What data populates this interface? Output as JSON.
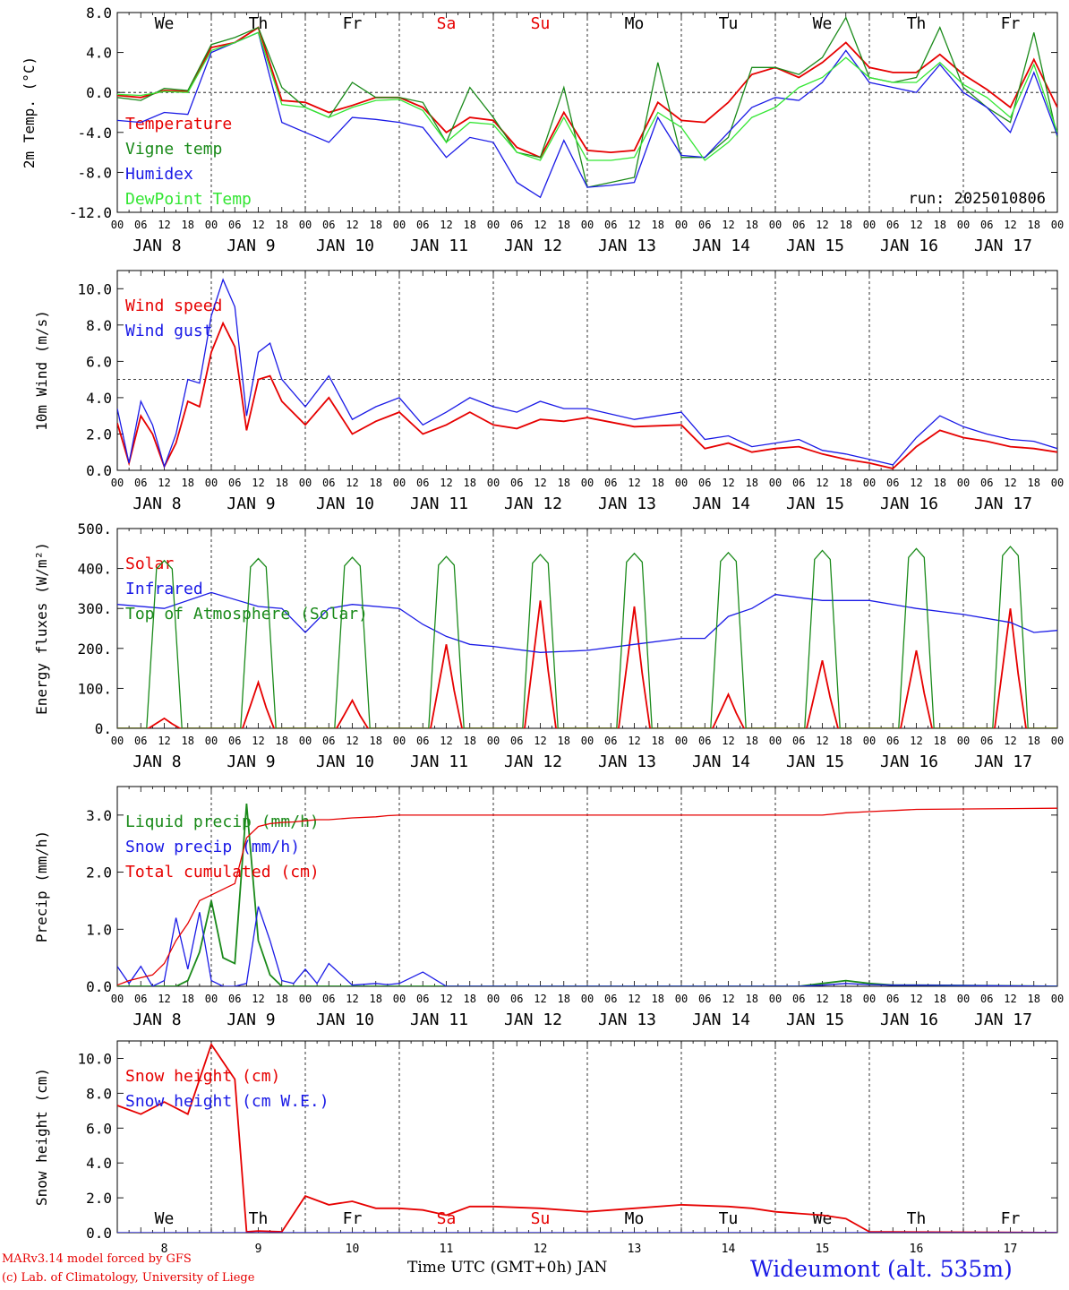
{
  "footer": {
    "credit_line1": "MARv3.14 model forced by GFS",
    "credit_line2": "(c) Lab. of Climatology, University of Liege",
    "x_title": "Time UTC (GMT+0h) JAN",
    "station": "Wideumont (alt. 535m)"
  },
  "colors": {
    "red": "#e60000",
    "green": "#1a8a1a",
    "blue": "#1a1ae6",
    "light_green": "#33e633",
    "weekend": "#e60000",
    "text": "#000000"
  },
  "days": {
    "weekday_labels": [
      "We",
      "Th",
      "Fr",
      "Sa",
      "Su",
      "Mo",
      "Tu",
      "We",
      "Th",
      "Fr"
    ],
    "weekend_flags": [
      false,
      false,
      false,
      true,
      true,
      false,
      false,
      false,
      false,
      false
    ],
    "date_labels": [
      "JAN 8",
      "JAN 9",
      "JAN 10",
      "JAN 11",
      "JAN 12",
      "JAN 13",
      "JAN 14",
      "JAN 15",
      "JAN 16",
      "JAN 17"
    ],
    "day_numbers": [
      "8",
      "9",
      "10",
      "11",
      "12",
      "13",
      "14",
      "15",
      "16",
      "17"
    ],
    "hour_labels": [
      "00",
      "06",
      "12",
      "18"
    ],
    "final_hour_label": "00"
  },
  "chart_data": [
    {
      "type": "line",
      "ylabel": "2m Temp. (°C)",
      "ylim": [
        -12,
        8
      ],
      "yticks": [
        "8.0",
        "4.0",
        "0.0",
        "-4.0",
        "-8.0",
        "-12.0"
      ],
      "ytick_values": [
        8,
        4,
        0,
        -4,
        -8,
        -12
      ],
      "reference_line": 0,
      "annotation": "run: 2025010806",
      "x_hours": [
        0,
        6,
        12,
        18,
        24,
        30,
        36,
        42,
        48,
        54,
        60,
        66,
        72,
        78,
        84,
        90,
        96,
        102,
        108,
        114,
        120,
        126,
        132,
        138,
        144,
        150,
        156,
        162,
        168,
        174,
        180,
        186,
        192,
        198,
        204,
        210,
        216,
        222,
        228,
        234,
        240
      ],
      "series": [
        {
          "name": "Temperature",
          "color": "#e60000",
          "values": [
            -0.3,
            -0.5,
            0.2,
            0.1,
            4.5,
            5.0,
            6.5,
            -0.8,
            -1.0,
            -2.0,
            -1.3,
            -0.5,
            -0.5,
            -1.5,
            -4.0,
            -2.5,
            -2.8,
            -5.5,
            -6.5,
            -2.0,
            -5.8,
            -6.0,
            -5.8,
            -1.0,
            -2.8,
            -3.0,
            -1.0,
            1.8,
            2.5,
            1.5,
            3.0,
            5.0,
            2.5,
            2.0,
            2.0,
            3.8,
            1.8,
            0.3,
            -1.5,
            3.3,
            -1.5
          ]
        },
        {
          "name": "Vigne temp",
          "color": "#1a8a1a",
          "values": [
            -0.5,
            -0.8,
            0.4,
            0.2,
            4.8,
            5.5,
            6.5,
            0.5,
            -1.5,
            -2.5,
            1.0,
            -0.5,
            -0.5,
            -1.0,
            -5.0,
            0.5,
            -2.5,
            -6.0,
            -6.5,
            0.5,
            -9.5,
            -9.0,
            -8.5,
            3.0,
            -6.5,
            -6.5,
            -4.5,
            2.5,
            2.5,
            1.8,
            3.5,
            7.5,
            1.5,
            1.0,
            1.5,
            6.5,
            0.5,
            -1.5,
            -3.0,
            6.0,
            -4.5
          ]
        },
        {
          "name": "Humidex",
          "color": "#1a1ae6",
          "values": [
            -2.8,
            -3.0,
            -2.0,
            -2.2,
            4.0,
            5.0,
            6.0,
            -3.0,
            -4.0,
            -5.0,
            -2.5,
            -2.7,
            -3.0,
            -3.5,
            -6.5,
            -4.5,
            -5.0,
            -9.0,
            -10.5,
            -4.8,
            -9.5,
            -9.3,
            -9.0,
            -2.5,
            -6.3,
            -6.5,
            -4.0,
            -1.5,
            -0.5,
            -0.8,
            1.0,
            4.2,
            1.0,
            0.5,
            0.0,
            2.8,
            0.0,
            -1.5,
            -4.0,
            2.0,
            -4.3
          ]
        },
        {
          "name": "DewPoint Temp",
          "color": "#33e633",
          "values": [
            -0.2,
            -0.3,
            0.1,
            0.0,
            4.2,
            5.0,
            6.0,
            -1.2,
            -1.5,
            -2.5,
            -1.5,
            -0.8,
            -0.7,
            -1.8,
            -5.0,
            -3.0,
            -3.2,
            -6.0,
            -6.8,
            -2.5,
            -6.8,
            -6.8,
            -6.5,
            -2.0,
            -3.5,
            -6.8,
            -5.0,
            -2.5,
            -1.5,
            0.5,
            1.5,
            3.5,
            1.5,
            1.0,
            1.0,
            3.0,
            0.8,
            -0.5,
            -2.5,
            2.8,
            -4.0
          ]
        }
      ]
    },
    {
      "type": "line",
      "ylabel": "10m Wind (m/s)",
      "ylim": [
        0,
        11
      ],
      "yticks": [
        "10.0",
        "8.0",
        "6.0",
        "4.0",
        "2.0",
        "0.0"
      ],
      "ytick_values": [
        10,
        8,
        6,
        4,
        2,
        0
      ],
      "reference_line": 5,
      "x_hours": [
        0,
        3,
        6,
        9,
        12,
        15,
        18,
        21,
        24,
        27,
        30,
        33,
        36,
        39,
        42,
        48,
        54,
        60,
        66,
        72,
        78,
        84,
        90,
        96,
        102,
        108,
        114,
        120,
        132,
        144,
        150,
        156,
        162,
        168,
        174,
        180,
        186,
        192,
        198,
        204,
        210,
        216,
        222,
        228,
        234,
        240
      ],
      "series": [
        {
          "name": "Wind speed",
          "color": "#e60000",
          "values": [
            2.6,
            0.4,
            3.0,
            2.0,
            0.2,
            1.5,
            3.8,
            3.5,
            6.5,
            8.1,
            6.8,
            2.2,
            5.0,
            5.2,
            3.8,
            2.5,
            4.0,
            2.0,
            2.7,
            3.2,
            2.0,
            2.5,
            3.2,
            2.5,
            2.3,
            2.8,
            2.7,
            2.9,
            2.4,
            2.5,
            1.2,
            1.5,
            1.0,
            1.2,
            1.3,
            0.9,
            0.6,
            0.4,
            0.1,
            1.3,
            2.2,
            1.8,
            1.6,
            1.3,
            1.2,
            1.0
          ]
        },
        {
          "name": "Wind gust",
          "color": "#1a1ae6",
          "values": [
            3.4,
            0.4,
            3.8,
            2.5,
            0.2,
            2.0,
            5.0,
            4.8,
            8.5,
            10.5,
            9.0,
            3.0,
            6.5,
            7.0,
            5.0,
            3.5,
            5.2,
            2.8,
            3.5,
            4.0,
            2.5,
            3.2,
            4.0,
            3.5,
            3.2,
            3.8,
            3.4,
            3.4,
            2.8,
            3.2,
            1.7,
            1.9,
            1.3,
            1.5,
            1.7,
            1.1,
            0.9,
            0.6,
            0.3,
            1.8,
            3.0,
            2.4,
            2.0,
            1.7,
            1.6,
            1.2
          ]
        }
      ]
    },
    {
      "type": "line",
      "ylabel": "Energy fluxes (W/m²)",
      "ylim": [
        0,
        500
      ],
      "yticks": [
        "500.",
        "400.",
        "300.",
        "200.",
        "100.",
        "0."
      ],
      "ytick_values": [
        500,
        400,
        300,
        200,
        100,
        0
      ],
      "series": [
        {
          "name": "Solar",
          "color": "#e60000",
          "peak_hour": 12,
          "daily_peaks": [
            25,
            115,
            70,
            210,
            320,
            305,
            85,
            170,
            195,
            300
          ]
        },
        {
          "name": "Infrared",
          "color": "#1a1ae6",
          "x_hours": [
            0,
            12,
            24,
            36,
            42,
            48,
            54,
            60,
            72,
            78,
            84,
            90,
            96,
            108,
            120,
            132,
            144,
            150,
            156,
            162,
            168,
            180,
            192,
            204,
            216,
            228,
            234,
            240
          ],
          "values": [
            310,
            300,
            340,
            305,
            300,
            240,
            300,
            310,
            300,
            260,
            230,
            210,
            205,
            190,
            195,
            210,
            225,
            225,
            280,
            300,
            335,
            320,
            320,
            300,
            285,
            265,
            240,
            245
          ]
        },
        {
          "name": "Top of Atmosphere (Solar)",
          "color": "#1a8a1a",
          "peak_hour": 12,
          "daily_peaks": [
            420,
            425,
            428,
            430,
            435,
            438,
            440,
            445,
            450,
            455
          ]
        }
      ]
    },
    {
      "type": "line",
      "ylabel": "Precip (mm/h)",
      "ylim": [
        0,
        3.5
      ],
      "yticks": [
        "3.0",
        "2.0",
        "1.0",
        "0.0"
      ],
      "ytick_values": [
        3,
        2,
        1,
        0
      ],
      "x_hours": [
        0,
        3,
        6,
        9,
        12,
        15,
        18,
        21,
        24,
        27,
        30,
        33,
        36,
        39,
        42,
        45,
        48,
        51,
        54,
        60,
        66,
        69,
        72,
        78,
        84,
        96,
        120,
        144,
        174,
        180,
        186,
        192,
        198,
        204,
        240
      ],
      "series": [
        {
          "name": "Liquid precip (mm/h)",
          "color": "#1a8a1a",
          "values": [
            0,
            0,
            0,
            0,
            0,
            0,
            0.1,
            0.6,
            1.5,
            0.5,
            0.4,
            3.2,
            0.8,
            0.2,
            0,
            0,
            0,
            0,
            0,
            0,
            0,
            0,
            0,
            0,
            0,
            0,
            0,
            0,
            0,
            0.05,
            0.1,
            0.05,
            0.02,
            0.02,
            0
          ]
        },
        {
          "name": "Snow precip (mm/h)",
          "color": "#1a1ae6",
          "values": [
            0.35,
            0.05,
            0.35,
            0,
            0.1,
            1.2,
            0.3,
            1.3,
            0.1,
            0,
            0,
            0.05,
            1.4,
            0.8,
            0.1,
            0.05,
            0.3,
            0.05,
            0.4,
            0.02,
            0.05,
            0.03,
            0.05,
            0.25,
            0,
            0,
            0,
            0,
            0,
            0.02,
            0.05,
            0.03,
            0.02,
            0.02,
            0
          ]
        },
        {
          "name": "Total cumulated (cm)",
          "color": "#e60000",
          "values": [
            0.02,
            0.1,
            0.15,
            0.2,
            0.4,
            0.8,
            1.1,
            1.5,
            1.6,
            1.7,
            1.8,
            2.6,
            2.8,
            2.85,
            2.87,
            2.88,
            2.9,
            2.92,
            2.92,
            2.95,
            2.97,
            2.99,
            3.0,
            3.0,
            3.0,
            3.0,
            3.0,
            3.0,
            3.0,
            3.0,
            3.04,
            3.06,
            3.08,
            3.1,
            3.12
          ]
        }
      ]
    },
    {
      "type": "line",
      "ylabel": "Snow height (cm)",
      "ylim": [
        0,
        11
      ],
      "yticks": [
        "10.0",
        "8.0",
        "6.0",
        "4.0",
        "2.0",
        "0.0"
      ],
      "ytick_values": [
        10,
        8,
        6,
        4,
        2,
        0
      ],
      "x_hours": [
        0,
        6,
        12,
        18,
        24,
        30,
        33,
        36,
        42,
        48,
        54,
        60,
        66,
        72,
        78,
        84,
        90,
        96,
        108,
        120,
        132,
        144,
        156,
        162,
        168,
        174,
        180,
        186,
        192,
        240
      ],
      "series": [
        {
          "name": "Snow height (cm)",
          "color": "#e60000",
          "values": [
            7.3,
            6.8,
            7.5,
            6.8,
            10.8,
            8.8,
            0.05,
            0.1,
            0.05,
            2.1,
            1.6,
            1.8,
            1.4,
            1.4,
            1.3,
            1.0,
            1.5,
            1.5,
            1.4,
            1.2,
            1.4,
            1.6,
            1.5,
            1.4,
            1.2,
            1.1,
            1.0,
            0.8,
            0.05,
            0.0
          ]
        },
        {
          "name": "Snow height (cm W.E.)",
          "color": "#1a1ae6",
          "values": [
            0,
            0,
            0,
            0,
            0,
            0,
            0,
            0,
            0,
            0,
            0,
            0,
            0,
            0,
            0,
            0,
            0,
            0,
            0,
            0,
            0,
            0,
            0,
            0,
            0,
            0,
            0,
            0,
            0,
            0
          ]
        }
      ]
    }
  ]
}
